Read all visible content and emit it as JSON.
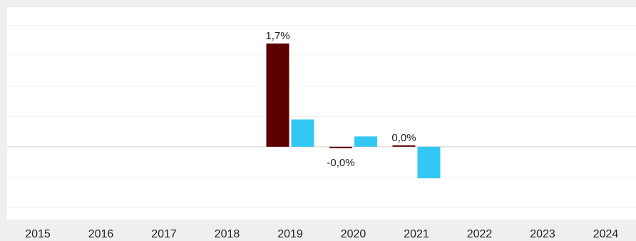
{
  "chart_data": {
    "type": "bar",
    "categories": [
      "2015",
      "2016",
      "2017",
      "2018",
      "2019",
      "2020",
      "2021",
      "2022",
      "2023",
      "2024"
    ],
    "series": [
      {
        "values": [
          null,
          null,
          null,
          null,
          1.7,
          -0.02,
          0.02,
          null,
          null,
          null
        ]
      },
      {
        "values": [
          null,
          null,
          null,
          null,
          0.45,
          0.17,
          -0.52,
          null,
          null,
          null
        ]
      }
    ],
    "data_labels": [
      {
        "category": "2019",
        "text": "1,7%"
      },
      {
        "category": "2020",
        "text": "-0,0%"
      },
      {
        "category": "2021",
        "text": "0,0%"
      }
    ],
    "ylim": [
      -1.2,
      2.3
    ],
    "grid": true,
    "legend": "none",
    "colors": {
      "series_1": "#5c0000",
      "series_2": "#33c8f4",
      "plot_background": "#ffffff",
      "page_background": "#efefef",
      "gridline": "#f0f0f0",
      "zero_line": "#d2d2d2"
    }
  }
}
